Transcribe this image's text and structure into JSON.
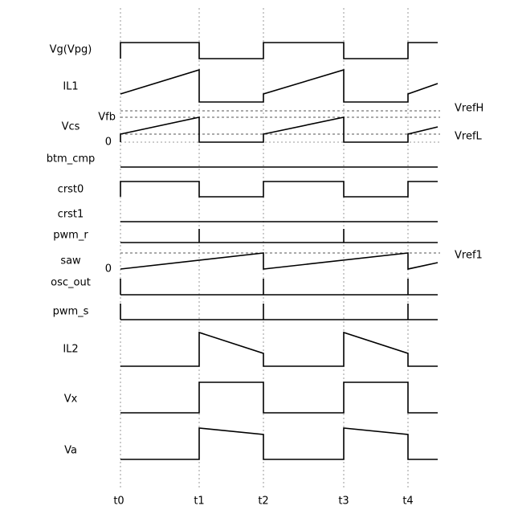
{
  "signals": [
    "Vg(Vpg)",
    "IL1",
    "Vcs",
    "btm_cmp",
    "crst0",
    "crst1",
    "pwm_r",
    "saw",
    "osc_out",
    "pwm_s",
    "IL2",
    "Vx",
    "Va"
  ],
  "times": [
    "t0",
    "t1",
    "t2",
    "t3",
    "t4"
  ],
  "references": {
    "vref_h": "VrefH",
    "vfb": "Vfb",
    "vref_l": "VrefL",
    "vcs_zero": "0",
    "vref1": "Vref1",
    "saw_zero": "0"
  }
}
